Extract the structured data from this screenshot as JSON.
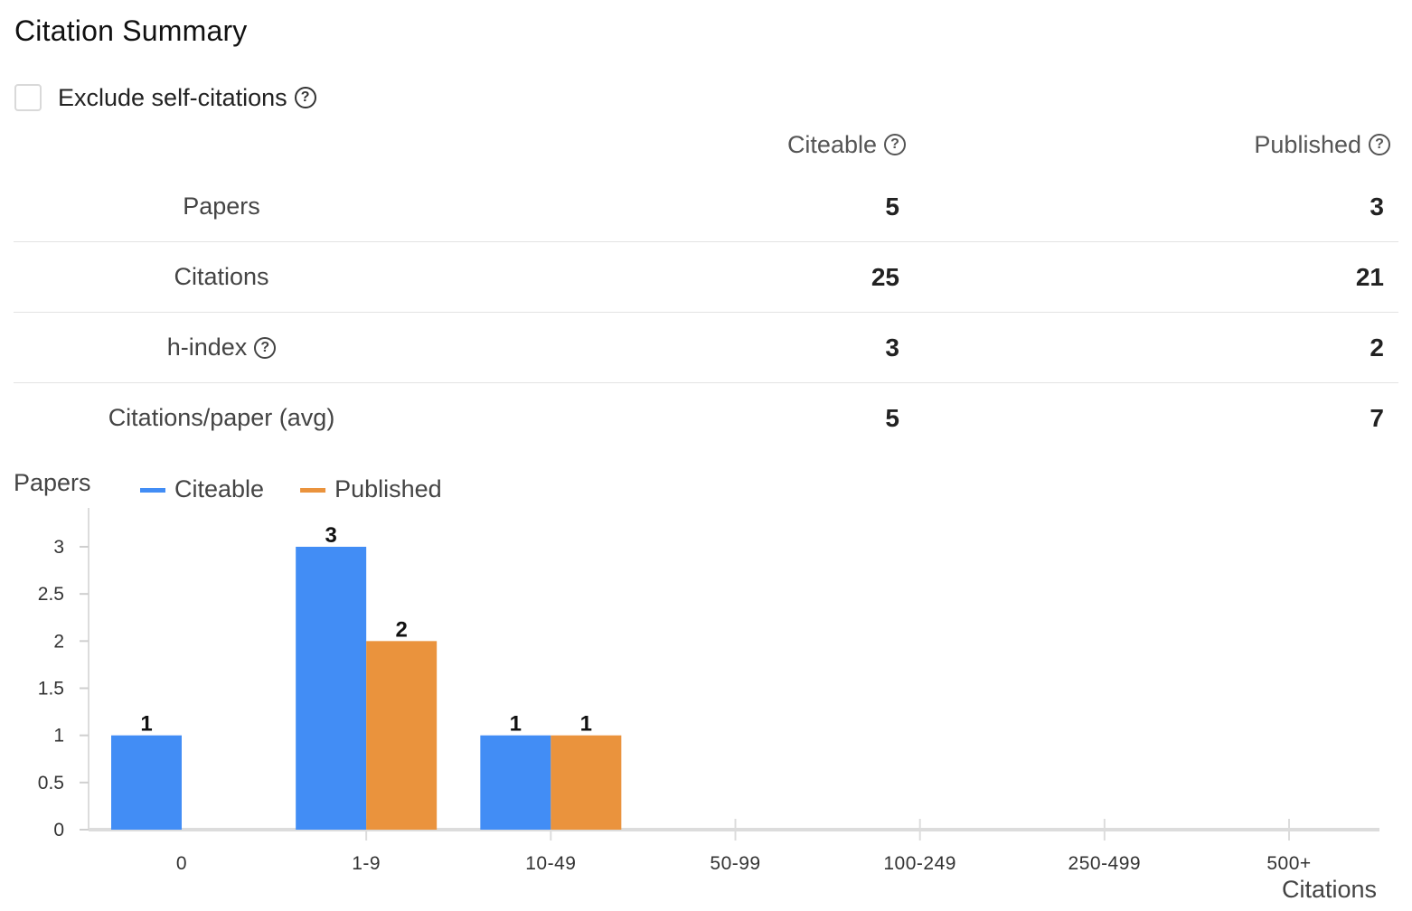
{
  "title": "Citation Summary",
  "exclude": {
    "label": "Exclude self-citations",
    "checked": false,
    "help_icon": "question-circle-icon"
  },
  "columns": {
    "citeable": "Citeable",
    "published": "Published"
  },
  "stats": [
    {
      "label": "Papers",
      "citeable": "5",
      "published": "3",
      "help": false
    },
    {
      "label": "Citations",
      "citeable": "25",
      "published": "21",
      "help": false
    },
    {
      "label": "h-index",
      "citeable": "3",
      "published": "2",
      "help": true
    },
    {
      "label": "Citations/paper (avg)",
      "citeable": "5",
      "published": "7",
      "help": false
    }
  ],
  "chart_data": {
    "type": "bar",
    "ylabel": "Papers",
    "xlabel": "Citations",
    "categories": [
      "0",
      "1-9",
      "10-49",
      "50-99",
      "100-249",
      "250-499",
      "500+"
    ],
    "series": [
      {
        "name": "Citeable",
        "color": "#428df5",
        "values": [
          1,
          3,
          1,
          0,
          0,
          0,
          0
        ]
      },
      {
        "name": "Published",
        "color": "#ea933d",
        "values": [
          0,
          2,
          1,
          0,
          0,
          0,
          0
        ]
      }
    ],
    "ylim": [
      0,
      3
    ],
    "yticks": [
      "0",
      "0.5",
      "1",
      "1.5",
      "2",
      "2.5",
      "3"
    ],
    "legend": "top-left",
    "grid": false
  }
}
